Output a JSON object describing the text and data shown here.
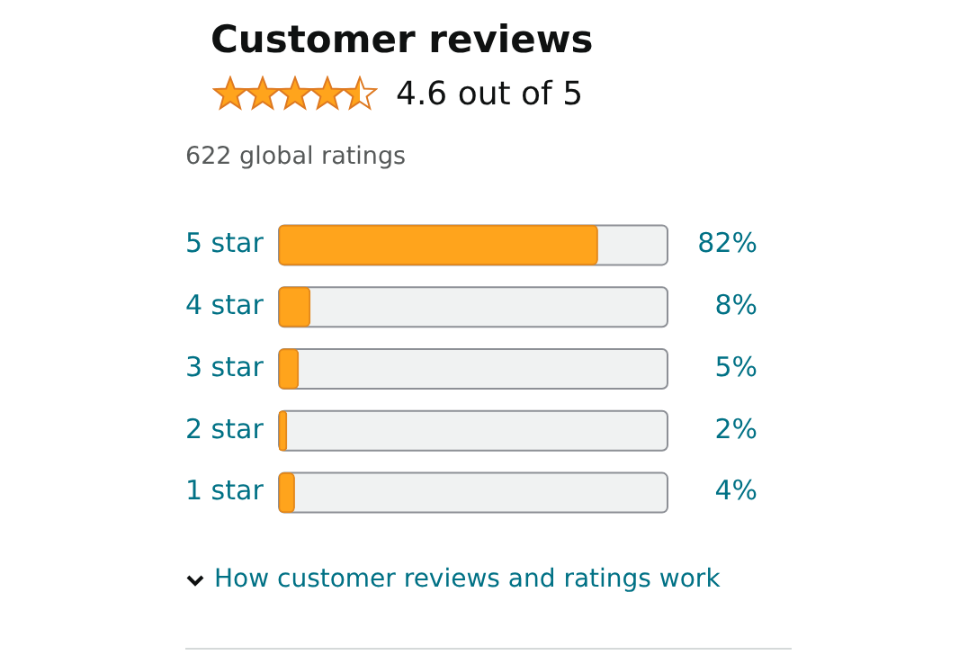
{
  "chart_data": {
    "type": "bar",
    "orientation": "horizontal",
    "title": "Customer reviews",
    "subtitle": "4.6 out of 5",
    "annotations": [
      "622 global ratings",
      "How customer reviews and ratings work"
    ],
    "categories": [
      "5 star",
      "4 star",
      "3 star",
      "2 star",
      "1 star"
    ],
    "values": [
      82,
      8,
      5,
      2,
      4
    ],
    "value_labels": [
      "82%",
      "8%",
      "5%",
      "2%",
      "4%"
    ],
    "color": "#ffa41c",
    "xlim": [
      0,
      100
    ],
    "tick_labels": "y"
  }
}
